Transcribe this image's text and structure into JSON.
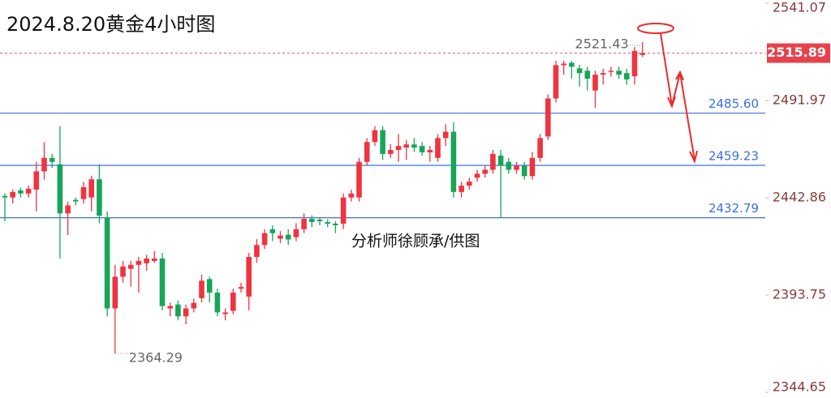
{
  "chart_data": {
    "type": "candlestick",
    "title": "2024.8.20黄金4小时图",
    "watermark": "分析师徐顾承/供图",
    "up_color": "#ef3340",
    "down_color": "#17a559",
    "level_color": "#3d6fe0",
    "ylim": [
      2344.65,
      2541.07
    ],
    "yticks": [
      2541.07,
      2491.97,
      2442.86,
      2393.75,
      2344.65
    ],
    "levels": [
      {
        "value": 2485.6,
        "label": "2485.60"
      },
      {
        "value": 2459.23,
        "label": "2459.23"
      },
      {
        "value": 2432.79,
        "label": "2432.79"
      }
    ],
    "open": [
      2443.8,
      2443.0,
      2446.6,
      2445.0,
      2447.0,
      2456.2,
      2463.0,
      2459.8,
      2435.0,
      2441.8,
      2442.2,
      2443.0,
      2452.2,
      2433.0,
      2387.0,
      2403.0,
      2407.0,
      2409.0,
      2409.8,
      2411.0,
      2412.2,
      2387.0,
      2389.0,
      2383.0,
      2387.0,
      2392.2,
      2401.8,
      2395.0,
      2384.2,
      2385.8,
      2397.0,
      2393.0,
      2413.0,
      2419.0,
      2427.0,
      2422.2,
      2424.2,
      2423.0,
      2427.0,
      2432.2,
      2431.8,
      2430.6,
      2429.8,
      2429.8,
      2443.0,
      2443.0,
      2461.0,
      2471.0,
      2477.0,
      2465.0,
      2467.0,
      2468.2,
      2469.8,
      2469.0,
      2465.8,
      2463.0,
      2473.0,
      2476.2,
      2445.8,
      2449.0,
      2453.0,
      2455.0,
      2457.0,
      2464.2,
      2461.0,
      2457.0,
      2459.0,
      2453.8,
      2463.0,
      2473.8,
      2493.0,
      2509.8,
      2511.0,
      2508.2,
      2507.0,
      2497.0,
      2505.0,
      2506.6,
      2507.0,
      2505.8,
      2504.2,
      2515.0
    ],
    "high": [
      2445,
      2447,
      2448,
      2449,
      2461,
      2471,
      2465,
      2479,
      2441,
      2443,
      2451,
      2454,
      2459.8,
      2436,
      2409,
      2411,
      2411,
      2413,
      2414,
      2416,
      2415,
      2390,
      2391,
      2389,
      2392,
      2404,
      2403,
      2397,
      2387,
      2397,
      2400,
      2415,
      2422,
      2427,
      2429,
      2426,
      2427,
      2430,
      2435,
      2434,
      2433,
      2432,
      2431,
      2445,
      2447,
      2463,
      2473,
      2479,
      2479,
      2470,
      2475,
      2472,
      2473,
      2471,
      2469,
      2475,
      2480,
      2481,
      2451,
      2453,
      2457,
      2459,
      2467,
      2467,
      2463,
      2461,
      2461,
      2466,
      2475,
      2495,
      2512,
      2512,
      2512,
      2510,
      2509,
      2507,
      2508,
      2509,
      2509,
      2508,
      2519,
      2521.43
    ],
    "low": [
      2431,
      2440,
      2443,
      2443,
      2436,
      2452,
      2458,
      2412.2,
      2424,
      2439,
      2440,
      2436,
      2430,
      2383,
      2364.29,
      2400,
      2398,
      2395,
      2406,
      2410,
      2386,
      2383,
      2381,
      2379,
      2385,
      2390,
      2390,
      2383,
      2381,
      2384,
      2395,
      2386,
      2410,
      2417,
      2421,
      2420,
      2419,
      2421,
      2425,
      2428,
      2429,
      2428,
      2425,
      2427,
      2441,
      2441,
      2459,
      2469,
      2462,
      2463,
      2461,
      2462,
      2466,
      2464,
      2461,
      2461,
      2469,
      2443,
      2443,
      2447,
      2451,
      2453,
      2455,
      2433,
      2455,
      2455,
      2452,
      2452,
      2461,
      2472,
      2491,
      2505,
      2503,
      2499,
      2497,
      2488.2,
      2500,
      2504,
      2503,
      2500,
      2500,
      2514
    ],
    "close": [
      2443.0,
      2445.8,
      2445.0,
      2447.4,
      2456.2,
      2463.0,
      2461.0,
      2435.0,
      2439.0,
      2441.0,
      2448.2,
      2452.2,
      2433.8,
      2387.0,
      2403.0,
      2408.2,
      2409.0,
      2411.0,
      2412.2,
      2412.2,
      2388.2,
      2388.2,
      2383.0,
      2387.0,
      2389.8,
      2401.0,
      2395.0,
      2385.0,
      2385.0,
      2395.0,
      2397.8,
      2413.0,
      2419.0,
      2425.0,
      2425.0,
      2423.8,
      2421.8,
      2427.0,
      2432.2,
      2430.6,
      2431.0,
      2429.8,
      2429.0,
      2443.0,
      2445.0,
      2461.0,
      2471.0,
      2477.0,
      2465.0,
      2467.0,
      2469.0,
      2469.8,
      2468.2,
      2465.8,
      2467.0,
      2473.0,
      2476.2,
      2445.8,
      2449.0,
      2451.0,
      2455.0,
      2457.0,
      2465.0,
      2459.0,
      2457.0,
      2459.0,
      2453.8,
      2463.0,
      2473.0,
      2493.0,
      2509.8,
      2510.6,
      2509.0,
      2505.8,
      2503.0,
      2505.0,
      2505.8,
      2507.0,
      2505.0,
      2502.6,
      2517.0,
      2515.89
    ]
  }
}
